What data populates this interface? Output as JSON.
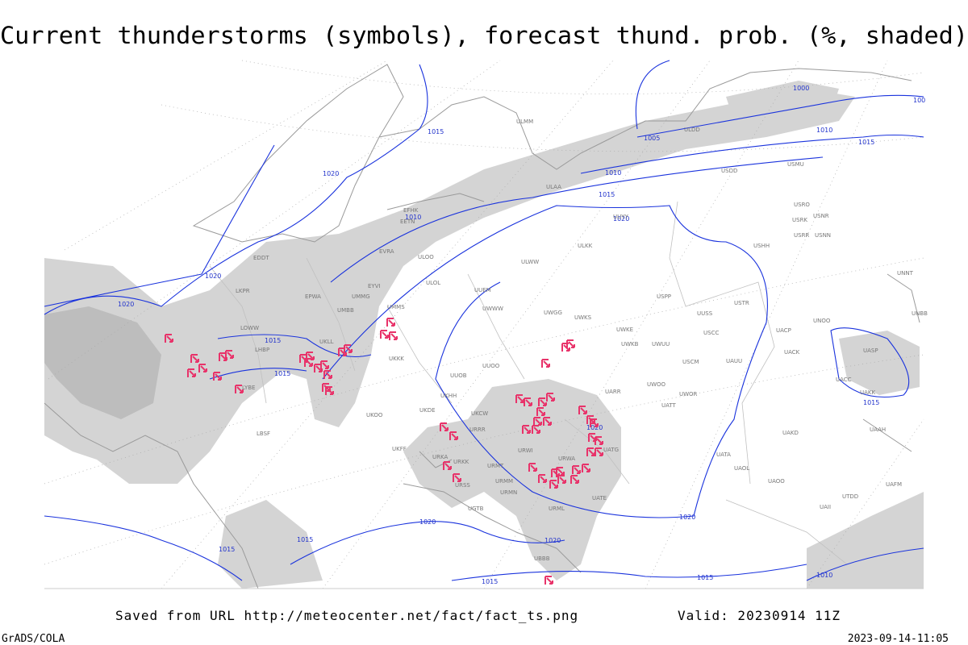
{
  "header": {
    "title": "Current thunderstorms (symbols), forecast thund. prob. (%, shaded)"
  },
  "footer": {
    "source": "Saved from URL http://meteocenter.net/fact/fact_ts.png",
    "valid": "Valid: 20230914 11Z",
    "software": "GrADS/COLA",
    "timestamp": "2023-09-14-11:05"
  },
  "isobar_labels": [
    "1000",
    "1005",
    "1010",
    "1015",
    "1010",
    "1015",
    "1020",
    "1020",
    "1015",
    "1010",
    "1020",
    "1020",
    "1015",
    "1015",
    "1020",
    "1015",
    "1020",
    "1020",
    "1020",
    "1015",
    "1015",
    "1015",
    "1015",
    "1010",
    "100"
  ],
  "station_labels": [
    "ULMM",
    "ULAA",
    "UUYY",
    "ULKK",
    "ULWW",
    "UUEM",
    "UWWW",
    "UWGG",
    "UWKS",
    "UUSS",
    "USTR",
    "USPP",
    "UWKE",
    "USCC",
    "UWKB",
    "UWUU",
    "USCM",
    "UAUU",
    "UUOO",
    "UUOB",
    "UARR",
    "UWOO",
    "UWOR",
    "UATT",
    "UKFF",
    "URRR",
    "UKCW",
    "URWI",
    "URMT",
    "URMM",
    "URMN",
    "URML",
    "URWA",
    "UATE",
    "UATG",
    "UATA",
    "UAOL",
    "UAOO",
    "UAKD",
    "UACC",
    "UAKK",
    "UACK",
    "UACP",
    "UNOO",
    "UASP",
    "USMU",
    "USDD",
    "USRO",
    "USRK",
    "USNR",
    "USRR",
    "USNN",
    "USHH",
    "ULDD",
    "EFHK",
    "EETN",
    "EVRA",
    "ULOO",
    "ULOL",
    "EYVI",
    "UMMG",
    "UMMS",
    "UMBB",
    "UKLL",
    "UKKK",
    "EPWA",
    "LKPR",
    "EDDT",
    "LOWW",
    "LHBP",
    "LYBE",
    "LBSF",
    "UKOO",
    "UKDE",
    "UKHH",
    "URKA",
    "URKK",
    "URSS",
    "UGTB",
    "UBBB",
    "UTDD",
    "UAII",
    "UNBB",
    "UNNT",
    "UAAH",
    "UAFM"
  ]
}
